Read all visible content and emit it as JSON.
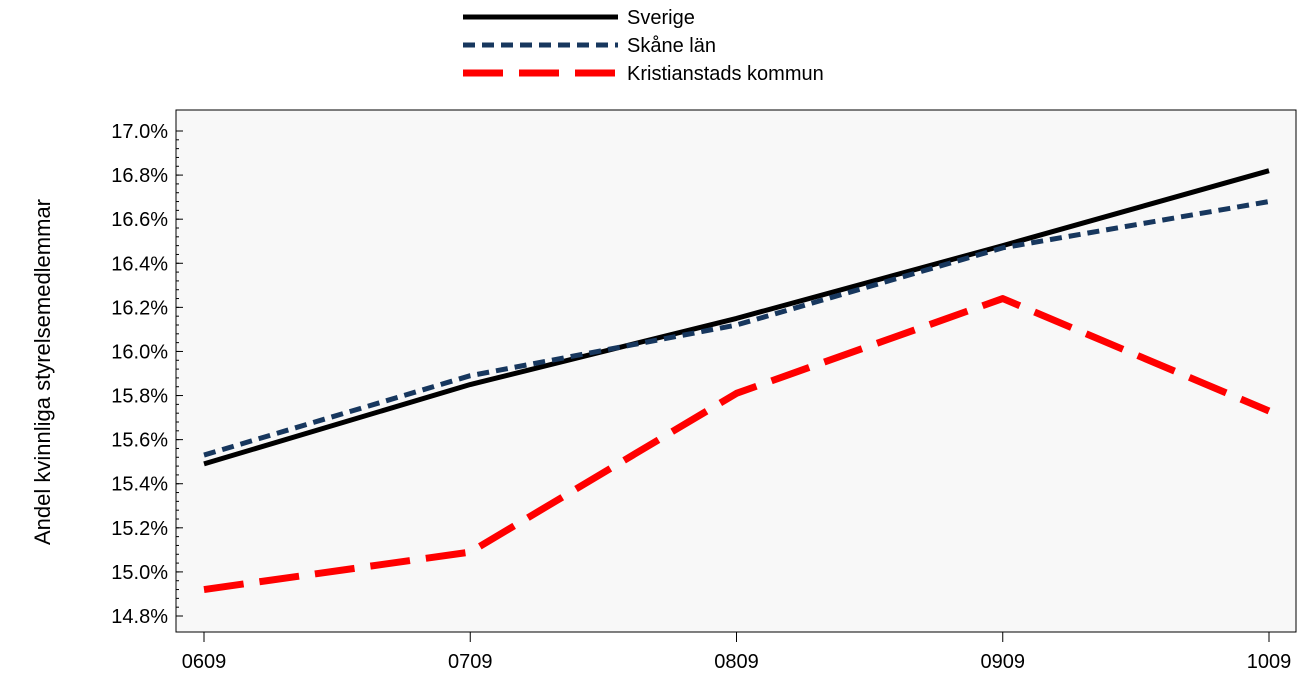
{
  "chart_data": {
    "type": "line",
    "title": "",
    "xlabel": "",
    "ylabel": "Andel kvinnliga styrelsemedlemmar",
    "categories": [
      "0609",
      "0709",
      "0809",
      "0909",
      "1009"
    ],
    "y_ticks": [
      "14.8%",
      "15.0%",
      "15.2%",
      "15.4%",
      "15.6%",
      "15.8%",
      "16.0%",
      "16.2%",
      "16.4%",
      "16.6%",
      "16.8%",
      "17.0%"
    ],
    "ylim": [
      14.75,
      17.1
    ],
    "grid": false,
    "legend_position": "top-center",
    "plot_background": "#f8f8f8",
    "series": [
      {
        "name": "Sverige",
        "values": [
          15.49,
          15.85,
          16.15,
          16.48,
          16.82
        ],
        "color": "#000000",
        "style": "solid"
      },
      {
        "name": "Skåne län",
        "values": [
          15.53,
          15.89,
          16.12,
          16.47,
          16.68
        ],
        "color": "#17375e",
        "style": "short-dash"
      },
      {
        "name": "Kristianstads kommun",
        "values": [
          14.92,
          15.09,
          15.81,
          16.24,
          15.73
        ],
        "color": "#ff0000",
        "style": "long-dash"
      }
    ]
  }
}
